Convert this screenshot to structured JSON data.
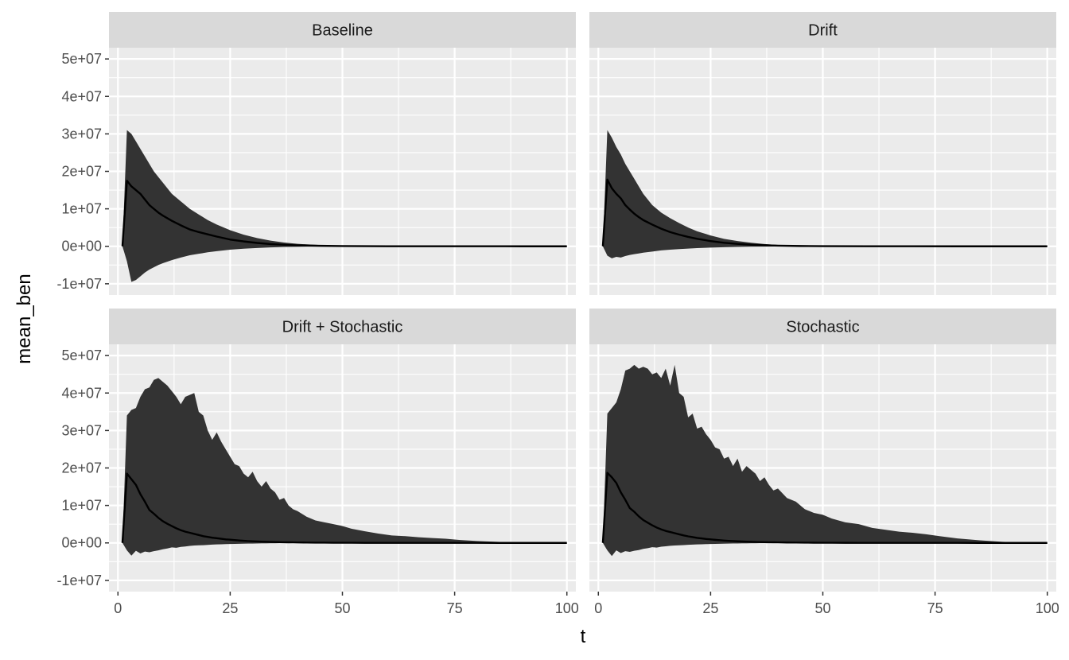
{
  "chart_data": {
    "type": "area",
    "layout": "facet-grid-2x2",
    "xlabel": "t",
    "ylabel": "mean_ben",
    "xlim": [
      -2,
      102
    ],
    "ylim": [
      -13000000,
      53000000
    ],
    "x_ticks": [
      0,
      25,
      50,
      75,
      100
    ],
    "x_tick_labels": [
      "0",
      "25",
      "50",
      "75",
      "100"
    ],
    "y_ticks": [
      -10000000,
      0,
      10000000,
      20000000,
      30000000,
      40000000,
      50000000
    ],
    "y_tick_labels": [
      "-1e+07",
      "0e+00",
      "1e+07",
      "2e+07",
      "3e+07",
      "4e+07",
      "5e+07"
    ],
    "grid": true,
    "band_color": "#333333",
    "line_color": "#000000",
    "panel_bg": "#ebebeb",
    "strip_bg": "#d9d9d9",
    "panels": [
      {
        "title": "Baseline",
        "x": [
          1,
          2,
          3,
          4,
          5,
          6,
          7,
          8,
          9,
          10,
          12,
          14,
          16,
          18,
          20,
          22,
          25,
          28,
          31,
          34,
          37,
          40,
          45,
          50,
          60,
          70,
          80,
          90,
          100
        ],
        "mean": [
          0,
          17500000,
          16000000,
          15000000,
          14000000,
          12500000,
          11000000,
          10000000,
          9000000,
          8200000,
          6800000,
          5600000,
          4500000,
          3800000,
          3200000,
          2600000,
          1800000,
          1300000,
          900000,
          600000,
          400000,
          250000,
          130000,
          60000,
          20000,
          8000,
          3000,
          1000,
          0
        ],
        "upper": [
          0,
          31000000,
          30000000,
          28000000,
          26000000,
          24000000,
          22000000,
          20000000,
          18500000,
          17000000,
          14000000,
          12000000,
          10000000,
          8500000,
          7000000,
          5800000,
          4300000,
          3100000,
          2200000,
          1500000,
          1000000,
          650000,
          350000,
          180000,
          60000,
          25000,
          10000,
          4000,
          0
        ],
        "lower": [
          0,
          -4000000,
          -9500000,
          -9000000,
          -8000000,
          -7000000,
          -6200000,
          -5600000,
          -5000000,
          -4500000,
          -3700000,
          -3000000,
          -2400000,
          -2000000,
          -1600000,
          -1300000,
          -900000,
          -650000,
          -450000,
          -300000,
          -200000,
          -130000,
          -60000,
          -30000,
          -10000,
          -4000,
          -1500,
          -500,
          0
        ]
      },
      {
        "title": "Drift",
        "x": [
          1,
          2,
          3,
          4,
          5,
          6,
          7,
          8,
          9,
          10,
          12,
          14,
          16,
          18,
          20,
          22,
          25,
          28,
          31,
          34,
          37,
          40,
          45,
          50,
          60,
          70,
          80,
          90,
          100
        ],
        "mean": [
          0,
          17800000,
          15500000,
          14000000,
          12800000,
          11000000,
          9800000,
          8700000,
          7800000,
          7000000,
          5800000,
          4700000,
          3800000,
          3100000,
          2500000,
          2000000,
          1400000,
          950000,
          650000,
          420000,
          270000,
          170000,
          80000,
          35000,
          10000,
          3000,
          1000,
          300,
          0
        ],
        "upper": [
          0,
          31000000,
          29000000,
          26500000,
          24500000,
          22000000,
          20000000,
          18000000,
          16000000,
          14000000,
          11000000,
          9000000,
          7500000,
          6200000,
          5000000,
          4000000,
          2900000,
          2000000,
          1400000,
          950000,
          600000,
          380000,
          180000,
          80000,
          25000,
          8000,
          2500,
          800,
          0
        ],
        "lower": [
          0,
          -2500000,
          -3200000,
          -2800000,
          -3000000,
          -2600000,
          -2300000,
          -2100000,
          -1900000,
          -1700000,
          -1400000,
          -1100000,
          -900000,
          -750000,
          -600000,
          -480000,
          -340000,
          -240000,
          -160000,
          -110000,
          -70000,
          -45000,
          -20000,
          -9000,
          -3000,
          -1000,
          -300,
          -100,
          0
        ]
      },
      {
        "title": "Drift + Stochastic",
        "x": [
          1,
          2,
          3,
          4,
          5,
          6,
          7,
          8,
          9,
          10,
          11,
          12,
          13,
          14,
          15,
          16,
          17,
          18,
          19,
          20,
          21,
          22,
          23,
          24,
          25,
          26,
          27,
          28,
          29,
          30,
          31,
          32,
          33,
          34,
          35,
          36,
          37,
          38,
          39,
          40,
          42,
          44,
          46,
          48,
          50,
          52,
          55,
          58,
          61,
          64,
          67,
          70,
          73,
          76,
          80,
          85,
          90,
          95,
          100
        ],
        "mean": [
          0,
          18500000,
          17000000,
          15500000,
          13000000,
          11000000,
          8800000,
          7800000,
          6700000,
          5800000,
          5100000,
          4500000,
          3900000,
          3400000,
          3000000,
          2700000,
          2400000,
          2100000,
          1800000,
          1600000,
          1400000,
          1250000,
          1100000,
          950000,
          850000,
          750000,
          650000,
          570000,
          500000,
          440000,
          390000,
          340000,
          300000,
          260000,
          230000,
          200000,
          180000,
          160000,
          140000,
          120000,
          95000,
          75000,
          60000,
          48000,
          38000,
          30000,
          22000,
          16000,
          12000,
          9000,
          7000,
          5000,
          4000,
          3000,
          2000,
          1200,
          700,
          300,
          0
        ],
        "upper": [
          0,
          34000000,
          35500000,
          36000000,
          39000000,
          41000000,
          41500000,
          43500000,
          44000000,
          43000000,
          42000000,
          40500000,
          39000000,
          37000000,
          39000000,
          39500000,
          40000000,
          35000000,
          34000000,
          30000000,
          27500000,
          29500000,
          27000000,
          25000000,
          23000000,
          21000000,
          20500000,
          18500000,
          17500000,
          19000000,
          16500000,
          15000000,
          16500000,
          14500000,
          13500000,
          11500000,
          12000000,
          10000000,
          9000000,
          8500000,
          7000000,
          6000000,
          5500000,
          5000000,
          4500000,
          3800000,
          3100000,
          2500000,
          2000000,
          1800000,
          1500000,
          1300000,
          1100000,
          800000,
          500000,
          250000,
          100000,
          30000,
          0
        ],
        "lower": [
          0,
          -2000000,
          -3400000,
          -2100000,
          -2800000,
          -2300000,
          -2500000,
          -2200000,
          -2000000,
          -1700000,
          -1500000,
          -1200000,
          -1300000,
          -1050000,
          -950000,
          -800000,
          -700000,
          -650000,
          -600000,
          -520000,
          -450000,
          -400000,
          -380000,
          -330000,
          -300000,
          -270000,
          -240000,
          -220000,
          -200000,
          -180000,
          -160000,
          -140000,
          -130000,
          -115000,
          -100000,
          -90000,
          -80000,
          -72000,
          -64000,
          -56000,
          -44000,
          -34000,
          -27000,
          -21000,
          -16000,
          -12000,
          -8500,
          -6000,
          -4200,
          -3000,
          -2200,
          -1600,
          -1200,
          -800,
          -500,
          -300,
          -150,
          -60,
          0
        ]
      },
      {
        "title": "Stochastic",
        "x": [
          1,
          2,
          3,
          4,
          5,
          6,
          7,
          8,
          9,
          10,
          11,
          12,
          13,
          14,
          15,
          16,
          17,
          18,
          19,
          20,
          21,
          22,
          23,
          24,
          25,
          26,
          27,
          28,
          29,
          30,
          31,
          32,
          33,
          34,
          35,
          36,
          37,
          38,
          39,
          40,
          42,
          44,
          46,
          48,
          50,
          52,
          55,
          58,
          61,
          64,
          67,
          70,
          73,
          76,
          80,
          85,
          90,
          95,
          100
        ],
        "mean": [
          0,
          18700000,
          17500000,
          16000000,
          13500000,
          11500000,
          9300000,
          8300000,
          7100000,
          6100000,
          5400000,
          4700000,
          4100000,
          3600000,
          3200000,
          2900000,
          2600000,
          2300000,
          2000000,
          1750000,
          1550000,
          1350000,
          1200000,
          1050000,
          930000,
          820000,
          720000,
          630000,
          550000,
          480000,
          420000,
          370000,
          330000,
          290000,
          255000,
          225000,
          200000,
          175000,
          155000,
          135000,
          105000,
          82000,
          65000,
          52000,
          41000,
          32000,
          24000,
          17000,
          13000,
          9500,
          7500,
          5500,
          4200,
          3200,
          2100,
          1300,
          700,
          300,
          0
        ],
        "upper": [
          0,
          34500000,
          36000000,
          37500000,
          41000000,
          46000000,
          46500000,
          47500000,
          46500000,
          47000000,
          46500000,
          45000000,
          45500000,
          44000000,
          46500000,
          42000000,
          47500000,
          40000000,
          39000000,
          33500000,
          34500000,
          30500000,
          31000000,
          29000000,
          27500000,
          25500000,
          25000000,
          22500000,
          23000000,
          20500000,
          22500000,
          19000000,
          20500000,
          19500000,
          18500000,
          16500000,
          17500000,
          15500000,
          14000000,
          14500000,
          12000000,
          11000000,
          9000000,
          8000000,
          7500000,
          6500000,
          5500000,
          5000000,
          4000000,
          3500000,
          3000000,
          2700000,
          2300000,
          1800000,
          1200000,
          700000,
          300000,
          80000,
          0
        ],
        "lower": [
          0,
          -2000000,
          -3500000,
          -2000000,
          -2700000,
          -2200000,
          -2400000,
          -2100000,
          -1900000,
          -1600000,
          -1400000,
          -1150000,
          -1250000,
          -1000000,
          -900000,
          -780000,
          -690000,
          -630000,
          -580000,
          -510000,
          -440000,
          -390000,
          -370000,
          -320000,
          -290000,
          -260000,
          -230000,
          -210000,
          -190000,
          -170000,
          -150000,
          -135000,
          -125000,
          -110000,
          -98000,
          -88000,
          -78000,
          -70000,
          -62000,
          -54000,
          -43000,
          -33000,
          -26000,
          -20000,
          -15500,
          -11500,
          -8200,
          -5800,
          -4100,
          -2900,
          -2100,
          -1500,
          -1100,
          -750,
          -480,
          -280,
          -140,
          -55,
          0
        ]
      }
    ]
  }
}
